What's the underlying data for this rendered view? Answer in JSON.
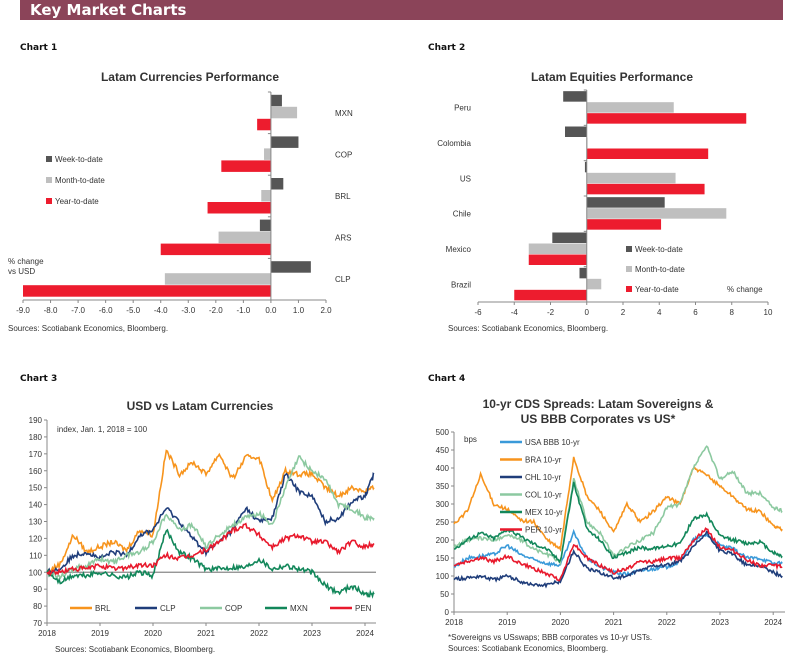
{
  "header": {
    "title": "Key Market Charts"
  },
  "chart_labels": [
    "Chart 1",
    "Chart 2",
    "Chart 3",
    "Chart 4"
  ],
  "chart_data": [
    {
      "type": "bar",
      "orientation": "horizontal",
      "title": "Latam Currencies Performance",
      "categories": [
        "MXN",
        "COP",
        "BRL",
        "ARS",
        "CLP"
      ],
      "series": [
        {
          "name": "Week-to-date",
          "color": "#555555",
          "values": [
            0.4,
            1.0,
            0.45,
            -0.4,
            1.45
          ]
        },
        {
          "name": "Month-to-date",
          "color": "#bfbfbf",
          "values": [
            0.95,
            -0.25,
            -0.35,
            -1.9,
            -3.85
          ]
        },
        {
          "name": "Year-to-date",
          "color": "#ed1c2e",
          "values": [
            -0.5,
            -1.8,
            -2.3,
            -4.0,
            -9.0
          ]
        }
      ],
      "xlim": [
        -9,
        2
      ],
      "xticks": [
        "-9.0",
        "-8.0",
        "-7.0",
        "-6.0",
        "-5.0",
        "-4.0",
        "-3.0",
        "-2.0",
        "-1.0",
        "0.0",
        "1.0",
        "2.0"
      ],
      "unit_note": [
        "% change",
        "vs USD"
      ],
      "legend": "left",
      "source": "Sources: Scotiabank Economics, Bloomberg."
    },
    {
      "type": "bar",
      "orientation": "horizontal",
      "title": "Latam Equities  Performance",
      "categories": [
        "Peru",
        "Colombia",
        "US",
        "Chile",
        "Mexico",
        "Brazil"
      ],
      "series": [
        {
          "name": "Week-to-date",
          "color": "#555555",
          "values": [
            -1.3,
            -1.2,
            -0.1,
            4.3,
            -1.9,
            -0.4
          ]
        },
        {
          "name": "Month-to-date",
          "color": "#bfbfbf",
          "values": [
            4.8,
            0.0,
            4.9,
            7.7,
            -3.2,
            0.8
          ]
        },
        {
          "name": "Year-to-date",
          "color": "#ed1c2e",
          "values": [
            8.8,
            6.7,
            6.5,
            4.1,
            -3.2,
            -4.0
          ]
        }
      ],
      "xlim": [
        -6,
        10
      ],
      "xticks": [
        "-6",
        "-4",
        "-2",
        "0",
        "2",
        "4",
        "6",
        "8",
        "10"
      ],
      "unit_note": [
        "% change"
      ],
      "legend": "bottom-right",
      "source": "Sources: Scotiabank Economics, Bloomberg."
    },
    {
      "type": "line",
      "title": "USD vs Latam Currencies",
      "annotation": "index, Jan. 1, 2018 = 100",
      "x": [
        2018,
        2018.25,
        2018.5,
        2018.75,
        2019,
        2019.25,
        2019.5,
        2019.75,
        2020,
        2020.25,
        2020.5,
        2020.75,
        2021,
        2021.25,
        2021.5,
        2021.75,
        2022,
        2022.25,
        2022.5,
        2022.75,
        2023,
        2023.25,
        2023.5,
        2023.75,
        2024,
        2024.17
      ],
      "series": [
        {
          "name": "BRL",
          "color": "#f7941d",
          "values": [
            100,
            105,
            122,
            112,
            115,
            118,
            113,
            125,
            122,
            172,
            158,
            165,
            158,
            170,
            155,
            168,
            168,
            142,
            160,
            158,
            158,
            150,
            145,
            150,
            148,
            150
          ]
        },
        {
          "name": "CLP",
          "color": "#1f3d7a",
          "values": [
            100,
            102,
            110,
            112,
            108,
            112,
            110,
            122,
            125,
            138,
            130,
            120,
            112,
            118,
            125,
            138,
            130,
            132,
            158,
            148,
            145,
            130,
            132,
            142,
            145,
            158
          ]
        },
        {
          "name": "COP",
          "color": "#8cc9a0",
          "values": [
            100,
            98,
            102,
            104,
            108,
            106,
            110,
            112,
            118,
            135,
            125,
            128,
            115,
            122,
            128,
            132,
            135,
            128,
            150,
            168,
            160,
            155,
            140,
            138,
            132,
            132
          ]
        },
        {
          "name": "MXN",
          "color": "#12875a",
          "values": [
            100,
            94,
            98,
            98,
            100,
            98,
            97,
            100,
            98,
            125,
            112,
            108,
            102,
            102,
            103,
            103,
            108,
            102,
            104,
            102,
            100,
            92,
            88,
            92,
            87,
            87
          ]
        },
        {
          "name": "PEN",
          "color": "#e8192c",
          "values": [
            100,
            100,
            102,
            102,
            104,
            102,
            103,
            104,
            104,
            110,
            108,
            110,
            113,
            118,
            125,
            128,
            122,
            115,
            120,
            122,
            118,
            118,
            112,
            118,
            115,
            117
          ]
        }
      ],
      "ylim": [
        70,
        190
      ],
      "yticks": [
        "70",
        "80",
        "90",
        "100",
        "110",
        "120",
        "130",
        "140",
        "150",
        "160",
        "170",
        "180",
        "190"
      ],
      "xticks": [
        "2018",
        "2019",
        "2020",
        "2021",
        "2022",
        "2023",
        "2024"
      ],
      "reference_line": 100,
      "legend": "bottom",
      "source": "Sources: Scotiabank Economics, Bloomberg."
    },
    {
      "type": "line",
      "title": [
        "10-yr CDS Spreads: Latam Sovereigns &",
        "US BBB Corporates vs US*"
      ],
      "ylabel": "bps",
      "x": [
        2018,
        2018.25,
        2018.5,
        2018.75,
        2019,
        2019.25,
        2019.5,
        2019.75,
        2020,
        2020.25,
        2020.5,
        2020.75,
        2021,
        2021.25,
        2021.5,
        2021.75,
        2022,
        2022.25,
        2022.5,
        2022.75,
        2023,
        2023.25,
        2023.5,
        2023.75,
        2024,
        2024.17
      ],
      "series": [
        {
          "name": "USA BBB 10-yr",
          "color": "#3a9ad9",
          "values": [
            125,
            150,
            155,
            160,
            185,
            160,
            145,
            135,
            130,
            220,
            150,
            125,
            110,
            105,
            115,
            120,
            125,
            140,
            200,
            215,
            185,
            175,
            150,
            150,
            135,
            135
          ]
        },
        {
          "name": "BRA 10-yr",
          "color": "#f7941d",
          "values": [
            245,
            280,
            380,
            300,
            285,
            255,
            250,
            200,
            175,
            430,
            320,
            280,
            220,
            300,
            250,
            280,
            320,
            300,
            400,
            380,
            350,
            320,
            285,
            280,
            240,
            230
          ]
        },
        {
          "name": "CHL 10-yr",
          "color": "#1f3d7a",
          "values": [
            90,
            95,
            100,
            90,
            100,
            85,
            75,
            75,
            85,
            170,
            120,
            110,
            95,
            100,
            115,
            130,
            130,
            140,
            180,
            220,
            170,
            160,
            130,
            130,
            110,
            100
          ]
        },
        {
          "name": "COL 10-yr",
          "color": "#8cc9a0",
          "values": [
            180,
            200,
            205,
            200,
            215,
            200,
            175,
            160,
            140,
            370,
            250,
            220,
            155,
            180,
            200,
            220,
            290,
            300,
            400,
            460,
            370,
            390,
            330,
            330,
            290,
            280
          ]
        },
        {
          "name": "MEX 10-yr",
          "color": "#12875a",
          "values": [
            175,
            200,
            220,
            205,
            230,
            210,
            190,
            175,
            140,
            360,
            230,
            200,
            150,
            165,
            180,
            175,
            185,
            190,
            260,
            270,
            210,
            200,
            190,
            195,
            165,
            155
          ]
        },
        {
          "name": "PER 10-yr",
          "color": "#e8192c",
          "values": [
            130,
            140,
            150,
            140,
            155,
            135,
            120,
            105,
            90,
            190,
            150,
            130,
            110,
            120,
            140,
            140,
            150,
            150,
            200,
            230,
            180,
            170,
            145,
            130,
            130,
            125
          ]
        }
      ],
      "ylim": [
        0,
        500
      ],
      "yticks": [
        "0",
        "50",
        "100",
        "150",
        "200",
        "250",
        "300",
        "350",
        "400",
        "450",
        "500"
      ],
      "xticks": [
        "2018",
        "2019",
        "2020",
        "2021",
        "2022",
        "2023",
        "2024"
      ],
      "legend": "top-left",
      "footnote": "*Sovereigns vs USswaps; BBB corporates vs 10-yr USTs.",
      "source": "Sources: Scotiabank Economics, Bloomberg."
    }
  ]
}
